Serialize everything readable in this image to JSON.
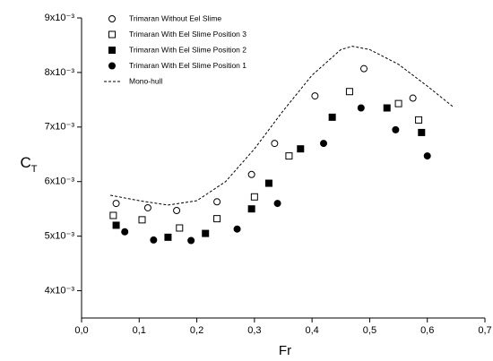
{
  "chart_data": {
    "type": "scatter",
    "x_label": "Fr",
    "y_label": "C",
    "y_label_subscript": "T",
    "xlim": [
      0,
      0.7
    ],
    "ylim": [
      0.0035,
      0.009
    ],
    "xticks": [
      {
        "value": 0,
        "label": "0,0"
      },
      {
        "value": 0.1,
        "label": "0,1"
      },
      {
        "value": 0.2,
        "label": "0,2"
      },
      {
        "value": 0.3,
        "label": "0,3"
      },
      {
        "value": 0.4,
        "label": "0,4"
      },
      {
        "value": 0.5,
        "label": "0,5"
      },
      {
        "value": 0.6,
        "label": "0,6"
      },
      {
        "value": 0.7,
        "label": "0,7"
      }
    ],
    "yticks": [
      {
        "value": 0.004,
        "label": "4x10⁻³"
      },
      {
        "value": 0.005,
        "label": "5x10⁻³"
      },
      {
        "value": 0.006,
        "label": "6x10⁻³"
      },
      {
        "value": 0.007,
        "label": "7x10⁻³"
      },
      {
        "value": 0.008,
        "label": "8x10⁻³"
      },
      {
        "value": 0.009,
        "label": "9x10⁻³"
      }
    ],
    "legend": "upper left",
    "series": [
      {
        "name": "Trimaran Without Eel Slime",
        "marker": "open-circle",
        "color": "#000000",
        "x": [
          0.06,
          0.115,
          0.165,
          0.235,
          0.295,
          0.335,
          0.405,
          0.49,
          0.575
        ],
        "values": [
          0.0056,
          0.00552,
          0.00547,
          0.00563,
          0.00613,
          0.0067,
          0.00757,
          0.00807,
          0.00753
        ]
      },
      {
        "name": "Trimaran With Eel Slime Position 3",
        "marker": "open-square",
        "color": "#000000",
        "x": [
          0.055,
          0.105,
          0.17,
          0.235,
          0.3,
          0.36,
          0.465,
          0.55,
          0.585
        ],
        "values": [
          0.00538,
          0.0053,
          0.00515,
          0.00532,
          0.00572,
          0.00647,
          0.00765,
          0.00743,
          0.00713
        ]
      },
      {
        "name": "Trimaran With Eel Slime Position 2",
        "marker": "filled-square",
        "color": "#000000",
        "x": [
          0.06,
          0.15,
          0.215,
          0.295,
          0.325,
          0.38,
          0.435,
          0.53,
          0.59
        ],
        "values": [
          0.0052,
          0.00498,
          0.00505,
          0.0055,
          0.00597,
          0.0066,
          0.00718,
          0.00735,
          0.0069
        ]
      },
      {
        "name": "Trimaran With Eel Slime Position 1",
        "marker": "filled-circle",
        "color": "#000000",
        "x": [
          0.075,
          0.125,
          0.19,
          0.27,
          0.34,
          0.42,
          0.485,
          0.545,
          0.6
        ],
        "values": [
          0.00508,
          0.00493,
          0.00492,
          0.00513,
          0.0056,
          0.0067,
          0.00735,
          0.00695,
          0.00647
        ]
      },
      {
        "name": "Mono-hull",
        "marker": "dashed-line",
        "color": "#000000",
        "x": [
          0.05,
          0.1,
          0.15,
          0.2,
          0.25,
          0.3,
          0.35,
          0.4,
          0.45,
          0.47,
          0.5,
          0.55,
          0.6,
          0.645
        ],
        "values": [
          0.00575,
          0.00565,
          0.00557,
          0.00565,
          0.006,
          0.0066,
          0.0073,
          0.00795,
          0.00842,
          0.00848,
          0.00842,
          0.00815,
          0.00775,
          0.00737
        ]
      }
    ]
  }
}
